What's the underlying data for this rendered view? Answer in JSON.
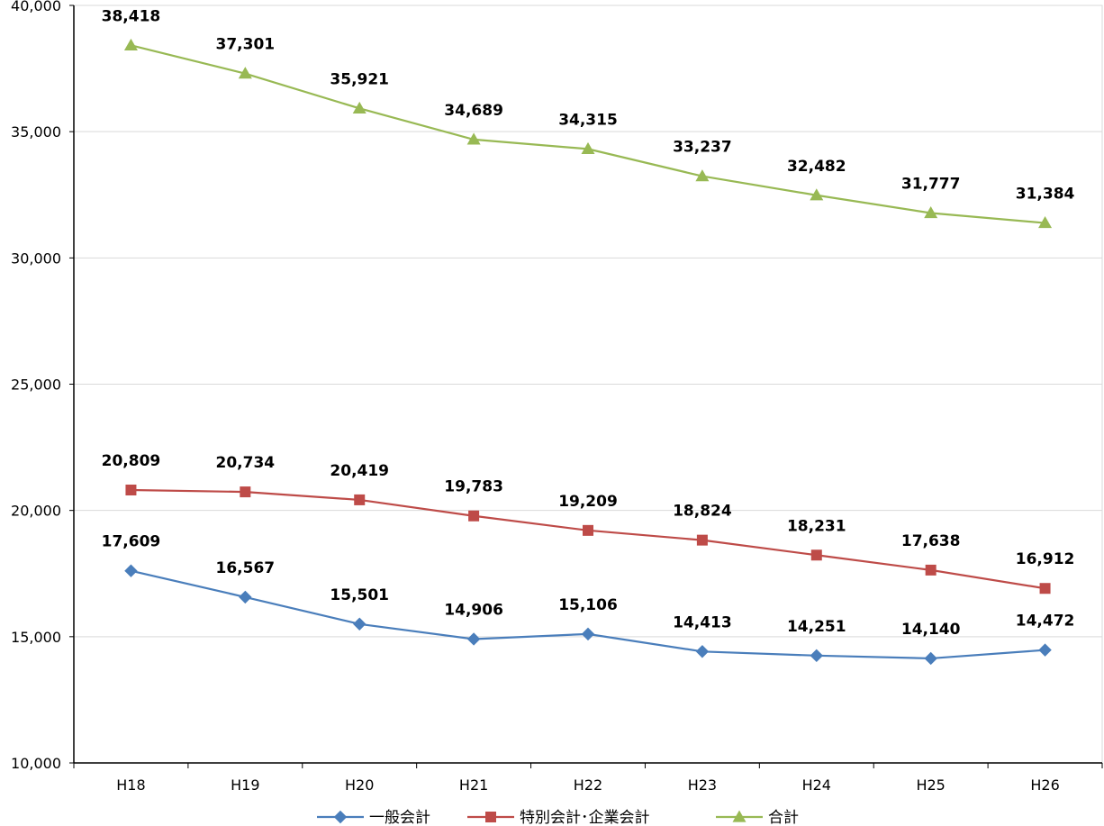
{
  "chart_data": {
    "type": "line",
    "title": "",
    "xlabel": "",
    "ylabel": "",
    "categories": [
      "H18",
      "H19",
      "H20",
      "H21",
      "H22",
      "H23",
      "H24",
      "H25",
      "H26"
    ],
    "ylim": [
      10000,
      40000
    ],
    "yticks": [
      10000,
      15000,
      20000,
      25000,
      30000,
      35000,
      40000
    ],
    "ytick_labels": [
      "10,000",
      "15,000",
      "20,000",
      "25,000",
      "30,000",
      "35,000",
      "40,000"
    ],
    "grid": true,
    "legend_position": "bottom",
    "series": [
      {
        "name": "一般会計",
        "color": "#4a7ebb",
        "marker": "diamond",
        "values": [
          17609,
          16567,
          15501,
          14906,
          15106,
          14413,
          14251,
          14140,
          14472
        ],
        "labels": [
          "17,609",
          "16,567",
          "15,501",
          "14,906",
          "15,106",
          "14,413",
          "14,251",
          "14,140",
          "14,472"
        ]
      },
      {
        "name": "特別会計･企業会計",
        "color": "#be4b48",
        "marker": "square",
        "values": [
          20809,
          20734,
          20419,
          19783,
          19209,
          18824,
          18231,
          17638,
          16912
        ],
        "labels": [
          "20,809",
          "20,734",
          "20,419",
          "19,783",
          "19,209",
          "18,824",
          "18,231",
          "17,638",
          "16,912"
        ]
      },
      {
        "name": "合計",
        "color": "#98b954",
        "marker": "triangle",
        "values": [
          38418,
          37301,
          35921,
          34689,
          34315,
          33237,
          32482,
          31777,
          31384
        ],
        "labels": [
          "38,418",
          "37,301",
          "35,921",
          "34,689",
          "34,315",
          "33,237",
          "32,482",
          "31,777",
          "31,384"
        ]
      }
    ]
  }
}
